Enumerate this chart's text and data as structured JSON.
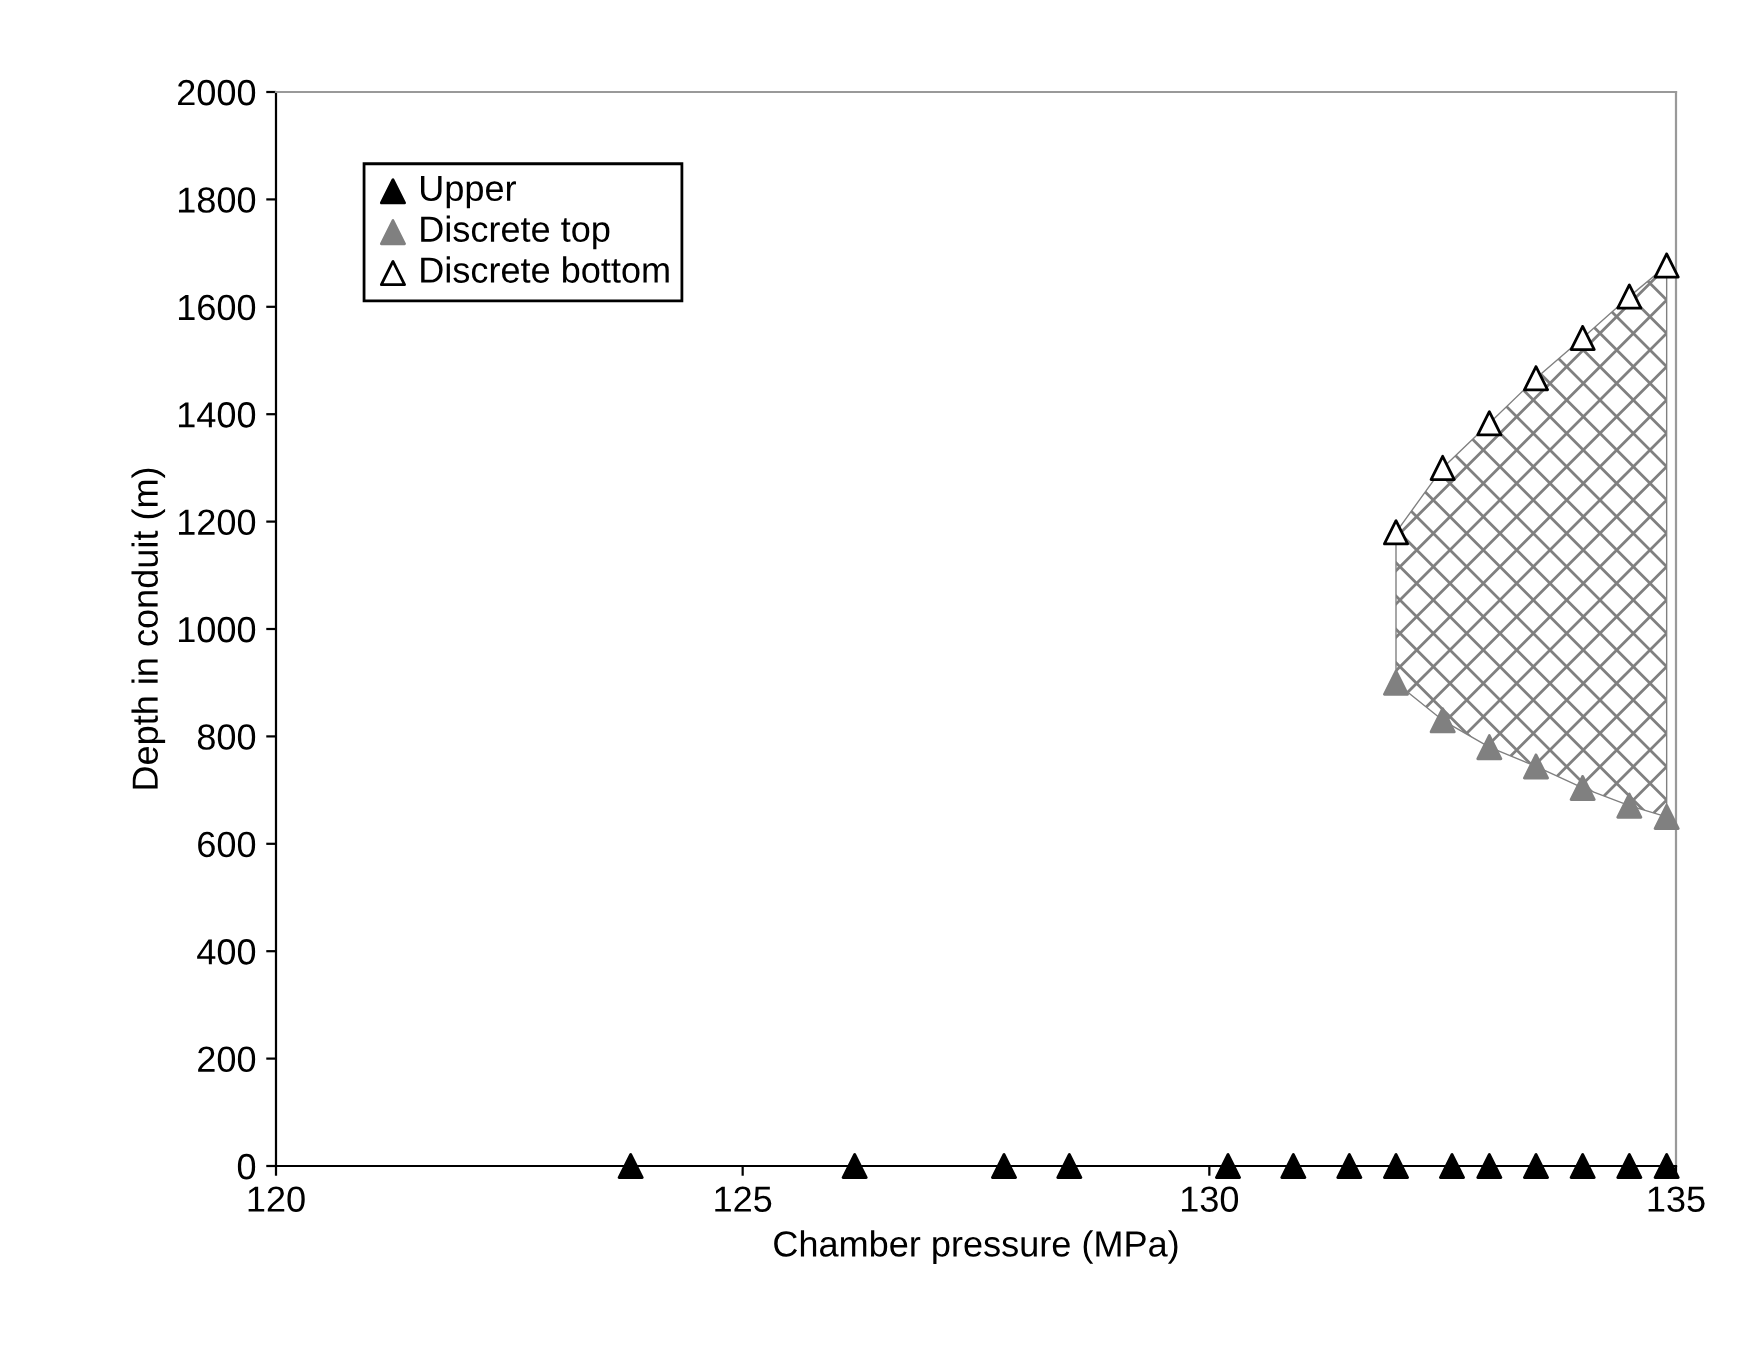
{
  "chart_data": {
    "type": "scatter",
    "xlabel": "Chamber pressure (MPa)",
    "ylabel": "Depth in conduit (m)",
    "xlim": [
      120,
      135
    ],
    "xticks": [
      120,
      125,
      130,
      135
    ],
    "ylim": [
      0,
      2000
    ],
    "yticks": [
      0,
      200,
      400,
      600,
      800,
      1000,
      1200,
      1400,
      1600,
      1800,
      2000
    ],
    "grid": false,
    "legend": "top left",
    "marker": "triangle",
    "series": [
      {
        "name": "Upper",
        "color": "#000000",
        "x": [
          123.8,
          126.2,
          127.8,
          128.5,
          130.2,
          130.9,
          131.5,
          132.0,
          132.6,
          133.0,
          133.5,
          134.0,
          134.5,
          134.9
        ],
        "values": [
          0,
          0,
          0,
          0,
          0,
          0,
          0,
          0,
          0,
          0,
          0,
          0,
          0,
          0
        ]
      },
      {
        "name": "Discrete top",
        "color": "#808080",
        "x": [
          132.0,
          132.5,
          133.0,
          133.5,
          134.0,
          134.5,
          134.9
        ],
        "values": [
          900,
          830,
          780,
          744,
          704,
          671,
          650
        ],
        "lower": [
          900,
          830,
          780,
          744,
          704,
          671,
          650
        ],
        "upper": [
          1180,
          1300,
          1383,
          1467,
          1542,
          1619,
          1677
        ]
      },
      {
        "name": "Discrete bottom",
        "color": "#ffffff",
        "x": [
          132.0,
          132.5,
          133.0,
          133.5,
          134.0,
          134.5,
          134.9
        ],
        "values": [
          1180,
          1300,
          1383,
          1467,
          1542,
          1619,
          1677
        ]
      }
    ]
  }
}
